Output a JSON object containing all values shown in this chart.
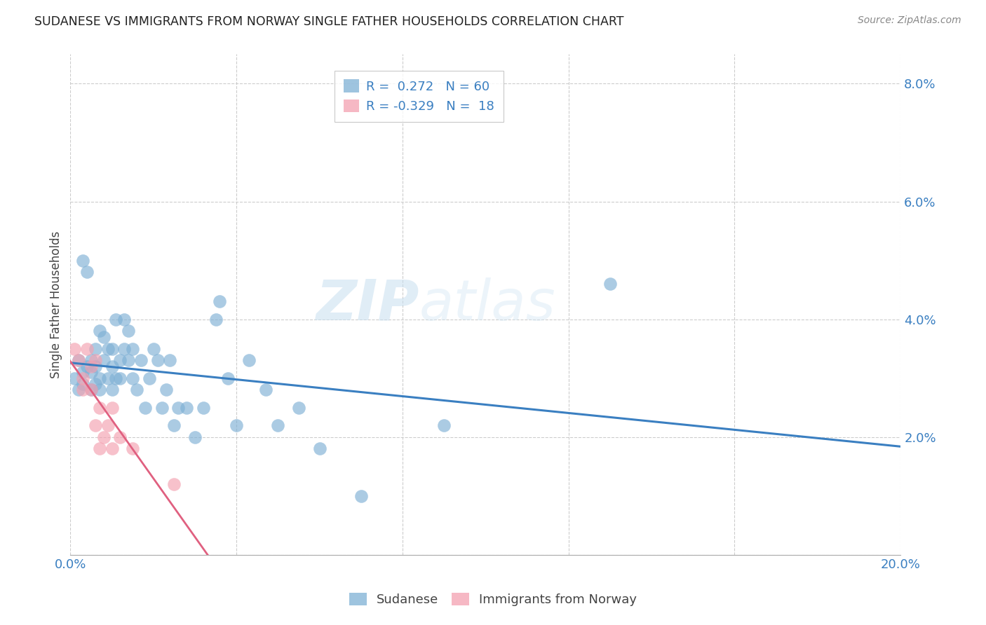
{
  "title": "SUDANESE VS IMMIGRANTS FROM NORWAY SINGLE FATHER HOUSEHOLDS CORRELATION CHART",
  "source": "Source: ZipAtlas.com",
  "xlabel": "",
  "ylabel": "Single Father Households",
  "xlim": [
    0.0,
    0.2
  ],
  "ylim": [
    0.0,
    0.085
  ],
  "xticks_left": [
    0.0
  ],
  "xticks_right": [
    0.2
  ],
  "xticklabel_left": "0.0%",
  "xticklabel_right": "20.0%",
  "yticks_right": [
    0.0,
    0.02,
    0.04,
    0.06,
    0.08
  ],
  "ytick_labels_right": [
    "",
    "2.0%",
    "4.0%",
    "6.0%",
    "8.0%"
  ],
  "grid_color": "#cccccc",
  "background_color": "#ffffff",
  "watermark_text": "ZIPatlas",
  "sudanese_color": "#7eb0d5",
  "norway_color": "#f4a0b0",
  "line_blue_color": "#3a7fc1",
  "line_pink_color": "#e06080",
  "legend_R_sudanese": "0.272",
  "legend_N_sudanese": "60",
  "legend_R_norway": "-0.329",
  "legend_N_norway": "18",
  "sudanese_x": [
    0.001,
    0.002,
    0.002,
    0.003,
    0.003,
    0.003,
    0.004,
    0.004,
    0.005,
    0.005,
    0.005,
    0.006,
    0.006,
    0.006,
    0.007,
    0.007,
    0.007,
    0.008,
    0.008,
    0.009,
    0.009,
    0.01,
    0.01,
    0.01,
    0.011,
    0.011,
    0.012,
    0.012,
    0.013,
    0.013,
    0.014,
    0.014,
    0.015,
    0.015,
    0.016,
    0.017,
    0.018,
    0.019,
    0.02,
    0.021,
    0.022,
    0.023,
    0.024,
    0.025,
    0.026,
    0.028,
    0.03,
    0.032,
    0.035,
    0.036,
    0.038,
    0.04,
    0.043,
    0.047,
    0.05,
    0.055,
    0.06,
    0.07,
    0.09,
    0.13
  ],
  "sudanese_y": [
    0.03,
    0.028,
    0.033,
    0.029,
    0.031,
    0.05,
    0.048,
    0.032,
    0.028,
    0.031,
    0.033,
    0.029,
    0.032,
    0.035,
    0.028,
    0.03,
    0.038,
    0.033,
    0.037,
    0.03,
    0.035,
    0.028,
    0.032,
    0.035,
    0.03,
    0.04,
    0.03,
    0.033,
    0.035,
    0.04,
    0.033,
    0.038,
    0.03,
    0.035,
    0.028,
    0.033,
    0.025,
    0.03,
    0.035,
    0.033,
    0.025,
    0.028,
    0.033,
    0.022,
    0.025,
    0.025,
    0.02,
    0.025,
    0.04,
    0.043,
    0.03,
    0.022,
    0.033,
    0.028,
    0.022,
    0.025,
    0.018,
    0.01,
    0.022,
    0.046
  ],
  "norway_x": [
    0.001,
    0.002,
    0.003,
    0.003,
    0.004,
    0.005,
    0.005,
    0.006,
    0.006,
    0.007,
    0.007,
    0.008,
    0.009,
    0.01,
    0.01,
    0.012,
    0.015,
    0.025
  ],
  "norway_y": [
    0.035,
    0.033,
    0.03,
    0.028,
    0.035,
    0.032,
    0.028,
    0.033,
    0.022,
    0.025,
    0.018,
    0.02,
    0.022,
    0.025,
    0.018,
    0.02,
    0.018,
    0.012
  ]
}
